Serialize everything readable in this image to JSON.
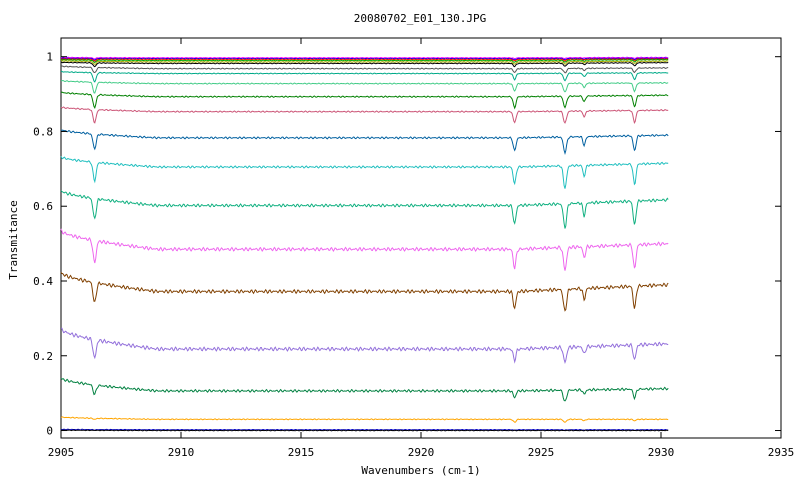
{
  "chart_data": {
    "type": "line",
    "title": "20080702_E01_130.JPG",
    "xlabel": "Wavenumbers (cm-1)",
    "ylabel": "Transmitance",
    "xlim": [
      2905,
      2935
    ],
    "ylim": [
      -0.02,
      1.05
    ],
    "x_ticks": [
      2905,
      2910,
      2915,
      2920,
      2925,
      2930,
      2935
    ],
    "x_tick_labels": [
      "2905",
      "2910",
      "2915",
      "2920",
      "2925",
      "2930",
      "2935"
    ],
    "y_ticks": [
      0,
      0.2,
      0.4,
      0.6,
      0.8,
      1
    ],
    "y_tick_labels": [
      "0",
      "0.2",
      "0.4",
      "0.6",
      "0.8",
      "1"
    ],
    "grid": false,
    "legend": "none",
    "x_range_data": [
      2905,
      2930.3
    ],
    "absorption_lines_cm1": [
      2906.4,
      2923.9,
      2926.0,
      2926.8,
      2928.9
    ],
    "series": [
      {
        "color": "#ff00ff",
        "start": 0.998,
        "baseline": 0.997,
        "end": 0.998,
        "dips": [
          0.003,
          0.002,
          0.002,
          0.001,
          0.002
        ]
      },
      {
        "color": "#0000ff",
        "start": 0.996,
        "baseline": 0.995,
        "end": 0.996,
        "dips": [
          0.004,
          0.003,
          0.003,
          0.002,
          0.003
        ]
      },
      {
        "color": "#ff0000",
        "start": 0.994,
        "baseline": 0.993,
        "end": 0.994,
        "dips": [
          0.005,
          0.004,
          0.004,
          0.002,
          0.004
        ]
      },
      {
        "color": "#00aa00",
        "start": 0.992,
        "baseline": 0.99,
        "end": 0.992,
        "dips": [
          0.006,
          0.005,
          0.005,
          0.003,
          0.005
        ]
      },
      {
        "color": "#aaaa00",
        "start": 0.989,
        "baseline": 0.986,
        "end": 0.988,
        "dips": [
          0.008,
          0.006,
          0.006,
          0.003,
          0.006
        ]
      },
      {
        "color": "#000000",
        "start": 0.985,
        "baseline": 0.982,
        "end": 0.984,
        "dips": [
          0.01,
          0.008,
          0.008,
          0.004,
          0.008
        ]
      },
      {
        "color": "#555555",
        "start": 0.975,
        "baseline": 0.968,
        "end": 0.97,
        "dips": [
          0.015,
          0.01,
          0.012,
          0.006,
          0.012
        ]
      },
      {
        "color": "#00aa88",
        "start": 0.96,
        "baseline": 0.955,
        "end": 0.957,
        "dips": [
          0.025,
          0.016,
          0.02,
          0.01,
          0.018
        ]
      },
      {
        "color": "#44cc88",
        "start": 0.936,
        "baseline": 0.928,
        "end": 0.93,
        "dips": [
          0.03,
          0.02,
          0.024,
          0.012,
          0.022
        ]
      },
      {
        "color": "#008000",
        "start": 0.905,
        "baseline": 0.893,
        "end": 0.897,
        "dips": [
          0.035,
          0.03,
          0.03,
          0.016,
          0.03
        ]
      },
      {
        "color": "#cc5577",
        "start": 0.865,
        "baseline": 0.853,
        "end": 0.857,
        "dips": [
          0.035,
          0.03,
          0.032,
          0.016,
          0.032
        ]
      },
      {
        "color": "#0060a0",
        "start": 0.805,
        "baseline": 0.783,
        "end": 0.79,
        "dips": [
          0.04,
          0.035,
          0.042,
          0.024,
          0.04
        ]
      },
      {
        "color": "#20bfbf",
        "start": 0.732,
        "baseline": 0.705,
        "end": 0.715,
        "dips": [
          0.05,
          0.045,
          0.06,
          0.03,
          0.055
        ]
      },
      {
        "color": "#10b080",
        "start": 0.642,
        "baseline": 0.602,
        "end": 0.617,
        "dips": [
          0.055,
          0.05,
          0.065,
          0.035,
          0.065
        ]
      },
      {
        "color": "#ee66ee",
        "start": 0.535,
        "baseline": 0.485,
        "end": 0.5,
        "dips": [
          0.06,
          0.05,
          0.06,
          0.03,
          0.065
        ]
      },
      {
        "color": "#804000",
        "start": 0.423,
        "baseline": 0.372,
        "end": 0.39,
        "dips": [
          0.055,
          0.045,
          0.06,
          0.03,
          0.06
        ]
      },
      {
        "color": "#9370db",
        "start": 0.272,
        "baseline": 0.218,
        "end": 0.232,
        "dips": [
          0.05,
          0.03,
          0.04,
          0.02,
          0.04
        ]
      },
      {
        "color": "#008040",
        "start": 0.14,
        "baseline": 0.106,
        "end": 0.112,
        "dips": [
          0.025,
          0.018,
          0.032,
          0.012,
          0.023
        ]
      },
      {
        "color": "#ffa500",
        "start": 0.036,
        "baseline": 0.03,
        "end": 0.03,
        "dips": [
          0.003,
          0.008,
          0.008,
          0.004,
          0.004
        ]
      },
      {
        "color": "#0000cc",
        "start": 0.003,
        "baseline": 0.002,
        "end": 0.002,
        "dips": [
          0.001,
          0.001,
          0.001,
          0.001,
          0.001
        ]
      },
      {
        "color": "#000000",
        "start": 0.001,
        "baseline": 0.0,
        "end": 0.0,
        "dips": [
          0.0,
          0.0,
          0.0,
          0.0,
          0.0
        ]
      }
    ]
  }
}
